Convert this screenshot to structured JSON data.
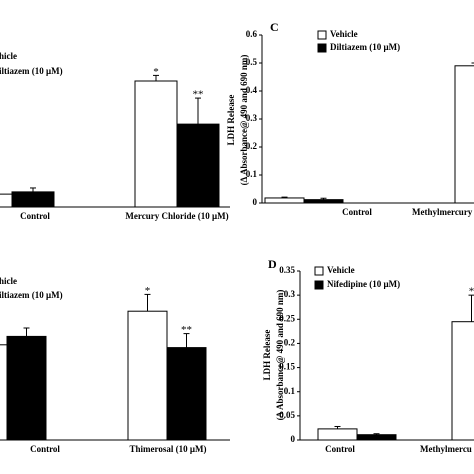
{
  "chart_data": [
    {
      "type": "bar",
      "categories": [
        "Control",
        "Mercury Chloride (10 μM)"
      ],
      "ylim": [
        0,
        0.6
      ],
      "series": [
        {
          "name": "hicle",
          "color": "#ffffff",
          "values": [
            0.046,
            0.45
          ],
          "errors": [
            0.005,
            0.02
          ]
        },
        {
          "name": "iltiazem (10 μM)",
          "color": "#000000",
          "values": [
            0.054,
            0.296
          ],
          "errors": [
            0.014,
            0.093
          ]
        }
      ],
      "annotations": [
        {
          "text": "*",
          "category": 1,
          "series": 0
        },
        {
          "text": "**",
          "category": 1,
          "series": 1
        }
      ]
    },
    {
      "type": "bar",
      "categories": [
        "Control",
        "Thimerosal (10 μM)"
      ],
      "ylim": [
        0,
        0.6
      ],
      "series": [
        {
          "name": "hicle",
          "color": "#ffffff",
          "values": [
            0.34,
            0.46
          ],
          "errors": [
            0.08,
            0.06
          ]
        },
        {
          "name": "iltiazem (10 μM)",
          "color": "#000000",
          "values": [
            0.37,
            0.33
          ],
          "errors": [
            0.03,
            0.05
          ]
        }
      ],
      "annotations": [
        {
          "text": "*",
          "category": 1,
          "series": 0
        },
        {
          "text": "**",
          "category": 1,
          "series": 1
        }
      ]
    },
    {
      "type": "bar",
      "label": "C",
      "y_label": [
        "LDH Release",
        "(Δ Absorbance@ 490 and 690 nm)"
      ],
      "categories": [
        "Control",
        "Methylmercury"
      ],
      "ylim": [
        0,
        0.6
      ],
      "yticks": [
        0,
        0.1,
        0.2,
        0.3,
        0.4,
        0.5,
        0.6
      ],
      "series": [
        {
          "name": "Vehicle",
          "color": "#ffffff",
          "values": [
            0.018,
            0.49
          ],
          "errors": [
            0.003,
            0.01
          ]
        },
        {
          "name": "Diltiazem (10 μM)",
          "color": "#000000",
          "values": [
            0.012,
            null
          ],
          "errors": [
            0.005,
            null
          ]
        }
      ],
      "annotations": []
    },
    {
      "type": "bar",
      "label": "D",
      "y_label": [
        "LDH Release",
        "(Δ Absorbance@ 490 and 690 nm)"
      ],
      "categories": [
        "Control",
        "Methylmercu"
      ],
      "ylim": [
        0,
        0.35
      ],
      "yticks": [
        0,
        0.05,
        0.1,
        0.15,
        0.2,
        0.25,
        0.3,
        0.35
      ],
      "series": [
        {
          "name": "Vehicle",
          "color": "#ffffff",
          "values": [
            0.023,
            0.245
          ],
          "errors": [
            0.005,
            0.055
          ]
        },
        {
          "name": "Nifedipine (10 μM)",
          "color": "#000000",
          "values": [
            0.011,
            null
          ],
          "errors": [
            0.002,
            null
          ]
        }
      ],
      "annotations": [
        {
          "text": "*",
          "category": 1,
          "series": 0
        }
      ]
    }
  ]
}
